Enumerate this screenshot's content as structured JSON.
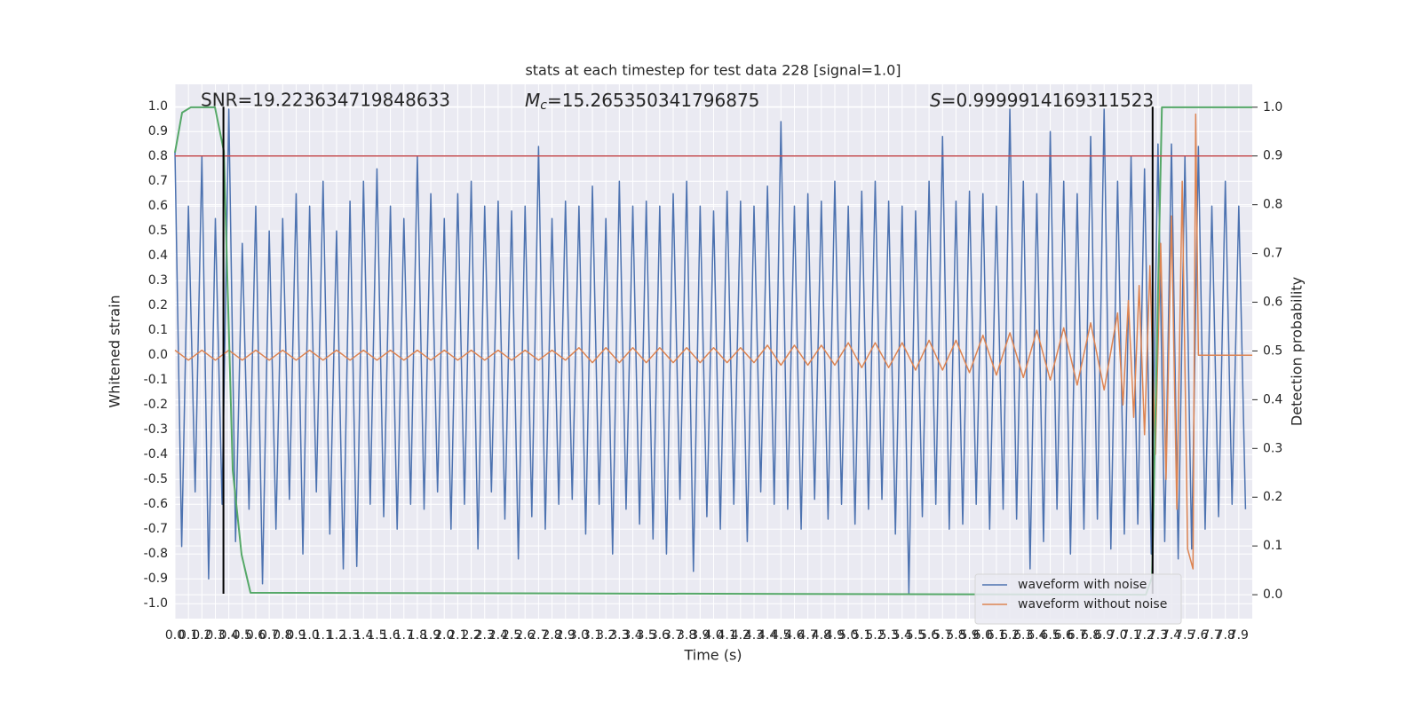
{
  "chart_data": {
    "type": "line",
    "title": "stats at each timestep for test data 228 [signal=1.0]",
    "xlabel": "Time (s)",
    "ylabel": "Whitened strain",
    "y2label": "Detection probability",
    "annotations": {
      "snr": "SNR=19.223634719848633",
      "mc_symbol": "M",
      "mc_subscript": "c",
      "mc_value": "=15.265350341796875",
      "s_symbol": "S",
      "s_value": "=0.9999914169311523"
    },
    "xlim": [
      0,
      8.0
    ],
    "ylim": [
      -1.06,
      1.09
    ],
    "y2lim": [
      -0.049,
      1.047
    ],
    "xticks": [
      {
        "value": 0,
        "label": "0.0"
      },
      0.1,
      0.2,
      0.3,
      0.4,
      0.5,
      0.6,
      0.7,
      0.8,
      0.9,
      {
        "value": 1,
        "label": "1.0"
      },
      1.1,
      1.2,
      1.3,
      1.4,
      1.5,
      1.6,
      1.7,
      1.8,
      1.9,
      {
        "value": 2,
        "label": "2.0"
      },
      2.1,
      2.2,
      2.3,
      2.4,
      2.5,
      2.6,
      2.7,
      2.8,
      2.9,
      {
        "value": 3,
        "label": "3.0"
      },
      3.1,
      3.2,
      3.3,
      3.4,
      3.5,
      3.6,
      3.7,
      3.8,
      3.9,
      {
        "value": 4,
        "label": "4.0"
      },
      4.1,
      4.2,
      4.3,
      4.4,
      4.5,
      4.6,
      4.7,
      4.8,
      4.9,
      {
        "value": 5,
        "label": "5.0"
      },
      5.1,
      5.2,
      5.3,
      5.4,
      5.5,
      5.6,
      5.7,
      5.8,
      5.9,
      {
        "value": 6,
        "label": "6.0"
      },
      6.1,
      6.2,
      6.3,
      6.4,
      6.5,
      6.6,
      6.7,
      6.8,
      6.9,
      {
        "value": 7,
        "label": "7.0"
      },
      7.1,
      7.2,
      7.3,
      7.4,
      7.5,
      7.6,
      7.7,
      7.8,
      7.9
    ],
    "yticks": [
      {
        "value": -1,
        "label": "-1.0"
      },
      -0.9,
      -0.8,
      -0.7,
      -0.6,
      -0.5,
      -0.4,
      -0.3,
      -0.2,
      -0.1,
      {
        "value": 0,
        "label": "0.0"
      },
      0.1,
      0.2,
      0.3,
      0.4,
      0.5,
      0.6,
      0.7,
      0.8,
      0.9,
      {
        "value": 1,
        "label": "1.0"
      }
    ],
    "y2ticks": [
      {
        "value": 0,
        "label": "0.0"
      },
      0.1,
      0.2,
      0.3,
      0.4,
      0.5,
      0.6,
      0.7,
      0.8,
      0.9,
      {
        "value": 1,
        "label": "1.0"
      }
    ],
    "grid": true,
    "legend": "lower right",
    "series": [
      {
        "name": "waveform with noise",
        "color": "#4c72b0",
        "x": [
          0,
          0.05,
          0.1,
          0.15,
          0.2,
          0.25,
          0.3,
          0.35,
          0.4,
          0.45,
          0.5,
          0.55,
          0.6,
          0.65,
          0.7,
          0.75,
          0.8,
          0.85,
          0.9,
          0.95,
          1,
          1.05,
          1.1,
          1.15,
          1.2,
          1.25,
          1.3,
          1.35,
          1.4,
          1.45,
          1.5,
          1.55,
          1.6,
          1.65,
          1.7,
          1.75,
          1.8,
          1.85,
          1.9,
          1.95,
          2,
          2.05,
          2.1,
          2.15,
          2.2,
          2.25,
          2.3,
          2.35,
          2.4,
          2.45,
          2.5,
          2.55,
          2.6,
          2.65,
          2.7,
          2.75,
          2.8,
          2.85,
          2.9,
          2.95,
          3,
          3.05,
          3.1,
          3.15,
          3.2,
          3.25,
          3.3,
          3.35,
          3.4,
          3.45,
          3.5,
          3.55,
          3.6,
          3.65,
          3.7,
          3.75,
          3.8,
          3.85,
          3.9,
          3.95,
          4,
          4.05,
          4.1,
          4.15,
          4.2,
          4.25,
          4.3,
          4.35,
          4.4,
          4.45,
          4.5,
          4.55,
          4.6,
          4.65,
          4.7,
          4.75,
          4.8,
          4.85,
          4.9,
          4.95,
          5,
          5.05,
          5.1,
          5.15,
          5.2,
          5.25,
          5.3,
          5.35,
          5.4,
          5.45,
          5.5,
          5.55,
          5.6,
          5.65,
          5.7,
          5.75,
          5.8,
          5.85,
          5.9,
          5.95,
          6,
          6.05,
          6.1,
          6.15,
          6.2,
          6.25,
          6.3,
          6.35,
          6.4,
          6.45,
          6.5,
          6.55,
          6.6,
          6.65,
          6.7,
          6.75,
          6.8,
          6.85,
          6.9,
          6.95,
          7,
          7.05,
          7.1,
          7.15,
          7.2,
          7.25,
          7.3,
          7.35,
          7.4,
          7.45,
          7.5,
          7.55,
          7.6,
          7.65,
          7.7,
          7.75,
          7.8,
          7.85,
          7.9,
          7.95
        ],
        "values": [
          0.82,
          -0.77,
          0.6,
          -0.55,
          0.8,
          -0.9,
          0.55,
          -0.6,
          0.99,
          -0.75,
          0.45,
          -0.62,
          0.6,
          -0.92,
          0.5,
          -0.7,
          0.55,
          -0.58,
          0.65,
          -0.8,
          0.6,
          -0.55,
          0.7,
          -0.72,
          0.5,
          -0.86,
          0.62,
          -0.85,
          0.7,
          -0.6,
          0.75,
          -0.65,
          0.6,
          -0.7,
          0.55,
          -0.6,
          0.8,
          -0.62,
          0.65,
          -0.55,
          0.55,
          -0.7,
          0.65,
          -0.6,
          0.7,
          -0.78,
          0.6,
          -0.55,
          0.62,
          -0.66,
          0.58,
          -0.82,
          0.6,
          -0.65,
          0.84,
          -0.7,
          0.55,
          -0.6,
          0.62,
          -0.58,
          0.6,
          -0.72,
          0.68,
          -0.6,
          0.55,
          -0.8,
          0.7,
          -0.62,
          0.6,
          -0.68,
          0.62,
          -0.74,
          0.6,
          -0.8,
          0.65,
          -0.58,
          0.7,
          -0.87,
          0.6,
          -0.65,
          0.58,
          -0.7,
          0.66,
          -0.6,
          0.62,
          -0.75,
          0.6,
          -0.55,
          0.68,
          -0.6,
          0.94,
          -0.62,
          0.6,
          -0.7,
          0.65,
          -0.58,
          0.62,
          -0.66,
          0.7,
          -0.6,
          0.6,
          -0.68,
          0.66,
          -0.62,
          0.7,
          -0.58,
          0.62,
          -0.72,
          0.6,
          -0.96,
          0.58,
          -0.65,
          0.7,
          -0.6,
          0.88,
          -0.7,
          0.62,
          -0.68,
          0.66,
          -0.6,
          0.65,
          -0.7,
          0.6,
          -0.62,
          0.99,
          -0.66,
          0.7,
          -0.86,
          0.65,
          -0.75,
          0.9,
          -0.62,
          0.7,
          -0.8,
          0.65,
          -0.7,
          0.88,
          -0.66,
          0.99,
          -0.78,
          0.7,
          -0.72,
          0.8,
          -0.68,
          0.75,
          -0.8,
          0.85,
          -0.75,
          0.85,
          -0.82,
          0.8,
          -0.78,
          0.84,
          -0.7,
          0.6,
          -0.65,
          0.7,
          -0.6,
          0.6,
          -0.62
        ]
      },
      {
        "name": "waveform without noise",
        "color": "#dd8452",
        "x": [
          0,
          0.1,
          0.2,
          0.3,
          0.4,
          0.5,
          0.6,
          0.7,
          0.8,
          0.9,
          1,
          1.1,
          1.2,
          1.3,
          1.4,
          1.5,
          1.6,
          1.7,
          1.8,
          1.9,
          2,
          2.1,
          2.2,
          2.3,
          2.4,
          2.5,
          2.6,
          2.7,
          2.8,
          2.9,
          3,
          3.1,
          3.2,
          3.3,
          3.4,
          3.5,
          3.6,
          3.7,
          3.8,
          3.9,
          4,
          4.1,
          4.2,
          4.3,
          4.4,
          4.5,
          4.6,
          4.7,
          4.8,
          4.9,
          5,
          5.1,
          5.2,
          5.3,
          5.4,
          5.5,
          5.6,
          5.7,
          5.8,
          5.9,
          6,
          6.1,
          6.2,
          6.3,
          6.4,
          6.5,
          6.6,
          6.7,
          6.8,
          6.9,
          7,
          7.04,
          7.08,
          7.12,
          7.16,
          7.2,
          7.24,
          7.28,
          7.32,
          7.36,
          7.4,
          7.44,
          7.48,
          7.52,
          7.56,
          7.58,
          7.6,
          8
        ],
        "values": [
          0.02,
          -0.02,
          0.02,
          -0.02,
          0.02,
          -0.02,
          0.02,
          -0.02,
          0.02,
          -0.02,
          0.02,
          -0.02,
          0.02,
          -0.02,
          0.02,
          -0.02,
          0.02,
          -0.02,
          0.02,
          -0.02,
          0.02,
          -0.02,
          0.02,
          -0.02,
          0.02,
          -0.02,
          0.02,
          -0.02,
          0.02,
          -0.02,
          0.03,
          -0.03,
          0.03,
          -0.03,
          0.03,
          -0.03,
          0.03,
          -0.03,
          0.03,
          -0.03,
          0.03,
          -0.03,
          0.03,
          -0.03,
          0.04,
          -0.04,
          0.04,
          -0.04,
          0.04,
          -0.04,
          0.05,
          -0.05,
          0.05,
          -0.05,
          0.05,
          -0.06,
          0.06,
          -0.06,
          0.06,
          -0.07,
          0.08,
          -0.08,
          0.09,
          -0.09,
          0.1,
          -0.1,
          0.11,
          -0.12,
          0.13,
          -0.14,
          0.17,
          -0.2,
          0.22,
          -0.25,
          0.28,
          -0.32,
          0.36,
          -0.4,
          0.45,
          -0.5,
          0.56,
          -0.62,
          0.7,
          -0.78,
          -0.86,
          0.97,
          0,
          0
        ]
      },
      {
        "color": "#55a868",
        "axis": "y2",
        "x": [
          0,
          0.053,
          0.119,
          0.297,
          0.363,
          0.429,
          0.495,
          0.561,
          7.21,
          7.256,
          7.329,
          8
        ],
        "values": [
          0.907,
          0.989,
          1,
          1,
          0.91,
          0.255,
          0.082,
          0.004,
          0,
          0.036,
          1,
          1
        ]
      }
    ],
    "hlines": [
      {
        "y": 0.9,
        "axis": "y2",
        "color": "#c44e52"
      }
    ],
    "vlines": [
      {
        "x": 0.36,
        "color": "#000000"
      },
      {
        "x": 7.26,
        "color": "#000000"
      }
    ]
  }
}
